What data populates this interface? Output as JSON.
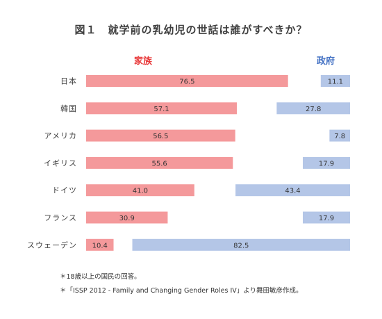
{
  "chart_data": {
    "type": "bar",
    "title": "図１　就学前の乳幼児の世話は誰がすべきか？",
    "series_names": [
      "家族",
      "政府"
    ],
    "colors": {
      "家族": "#f4999b",
      "政府": "#b4c6e7",
      "family_header": "#e8393a",
      "government_header": "#4472c4"
    },
    "categories": [
      "日本",
      "韓国",
      "アメリカ",
      "イギリス",
      "ドイツ",
      "フランス",
      "スウェーデン"
    ],
    "series": [
      {
        "name": "家族",
        "values": [
          76.5,
          57.1,
          56.5,
          55.6,
          41.0,
          30.9,
          10.4
        ],
        "labels": [
          "76.5",
          "57.1",
          "56.5",
          "55.6",
          "41.0",
          "30.9",
          "10.4"
        ]
      },
      {
        "name": "政府",
        "values": [
          11.1,
          27.8,
          7.8,
          17.9,
          43.4,
          17.9,
          82.5
        ],
        "labels": [
          "11.1",
          "27.8",
          "7.8",
          "17.9",
          "43.4",
          "17.9",
          "82.5"
        ]
      }
    ],
    "xlim": [
      0,
      100
    ],
    "grid": false,
    "legend": "top"
  },
  "notes": [
    "＊18歳以上の国民の回答。",
    "＊「ISSP 2012 - Family and Changing Gender Roles IV」より舞田敏彦作成。"
  ]
}
